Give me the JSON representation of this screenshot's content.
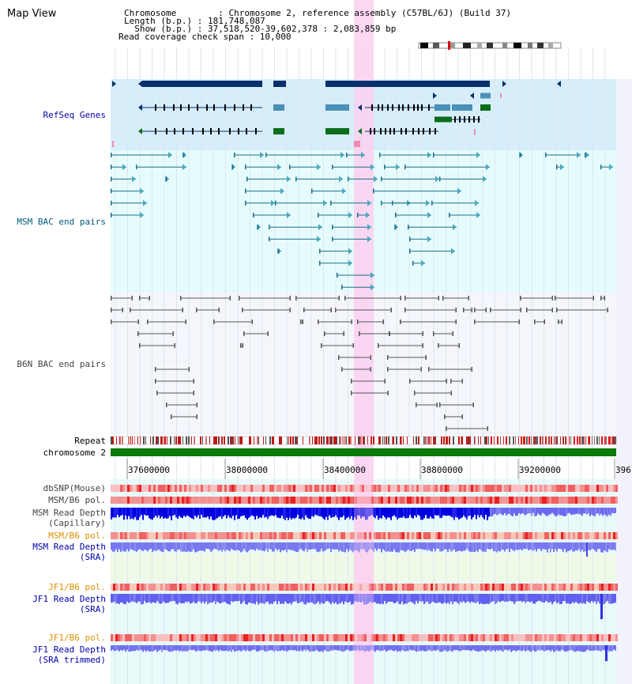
{
  "app": {
    "title": "Map View"
  },
  "info": {
    "chromosome": "Chromosome        : Chromosome 2, reference assembly (C57BL/6J) (Build 37)",
    "length": "Length (b.p.) : 181,748,087",
    "show": "  Show (b.p.) : 37,518,520-39,602,378 : 2,083,859 bp",
    "coverage": "Read coverage check span : 10,000"
  },
  "tracks": {
    "refseq": "RefSeq Genes",
    "msm_bac": "MSM BAC end pairs",
    "b6n_bac": "B6N BAC end pairs",
    "repeat": "Repeat",
    "chromosome": "chromosome 2",
    "dbsnp": "dbSNP(Mouse)",
    "msm_b6_pol": "MSM/B6 pol.",
    "msm_depth_cap_1": "MSM Read Depth",
    "msm_depth_cap_2": "(Capillary)",
    "msm_b6_pol2": "MSM/B6 pol.",
    "msm_depth_sra_1": "MSM Read Depth",
    "msm_depth_sra_2": "(SRA)",
    "jf1_b6_pol": "JF1/B6 pol.",
    "jf1_depth_1": "JF1 Read Depth",
    "jf1_depth_2": "(SRA)",
    "jf1_b6_pol2": "JF1/B6 pol.",
    "jf1_trim_1": "JF1 Read Depth",
    "jf1_trim_2": "(SRA trimmed)"
  },
  "axis": {
    "ticks": [
      "37600000",
      "38000000",
      "38400000",
      "38800000",
      "39200000",
      "396"
    ]
  },
  "colors": {
    "refseq_bg": "#d6eefa",
    "msm_bg": "#e6fcfc",
    "b6n_bg": "#f4f6fc",
    "highlight": "#fcd0f0",
    "gene_dark": "#08306b",
    "gene_blue": "#4a90b8",
    "gene_green": "#0a6e1a",
    "msm_line": "#1a6e8c",
    "b6n_line": "#555555",
    "chromosome_bar": "#0a7a0a",
    "depth_dark": "#0000e0",
    "depth_light": "#7878f0",
    "pol_red": "#f06060",
    "label_blue": "#0000aa",
    "label_orange": "#e09000"
  }
}
